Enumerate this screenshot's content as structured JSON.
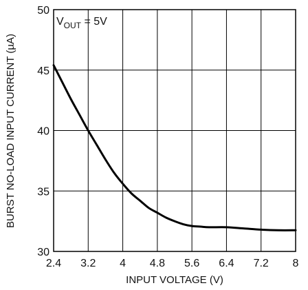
{
  "chart_data": {
    "type": "line",
    "title": "",
    "xlabel": "INPUT VOLTAGE (V)",
    "ylabel": "BURST NO-LOAD INPUT CURRENT (µA)",
    "xlim": [
      2.4,
      8
    ],
    "ylim": [
      30,
      50
    ],
    "x_ticks": [
      "2.4",
      "3.2",
      "4",
      "4.8",
      "5.6",
      "6.4",
      "7.2",
      "8"
    ],
    "y_ticks": [
      "30",
      "35",
      "40",
      "45",
      "50"
    ],
    "grid": true,
    "legend": "none",
    "annotation": {
      "main": "V",
      "sub": "OUT",
      "rest": " = 5V"
    },
    "series": [
      {
        "name": "",
        "x": [
          2.4,
          2.6,
          2.8,
          3.0,
          3.2,
          3.4,
          3.6,
          3.8,
          4.0,
          4.2,
          4.4,
          4.6,
          4.8,
          5.0,
          5.2,
          5.4,
          5.6,
          5.8,
          6.0,
          6.4,
          6.8,
          7.2,
          7.6,
          8.0
        ],
        "y": [
          45.4,
          44.0,
          42.6,
          41.3,
          40.0,
          38.8,
          37.6,
          36.5,
          35.6,
          34.8,
          34.2,
          33.6,
          33.2,
          32.8,
          32.5,
          32.25,
          32.1,
          32.05,
          32.0,
          32.0,
          31.9,
          31.8,
          31.75,
          31.75
        ],
        "color": "#000000"
      }
    ]
  }
}
